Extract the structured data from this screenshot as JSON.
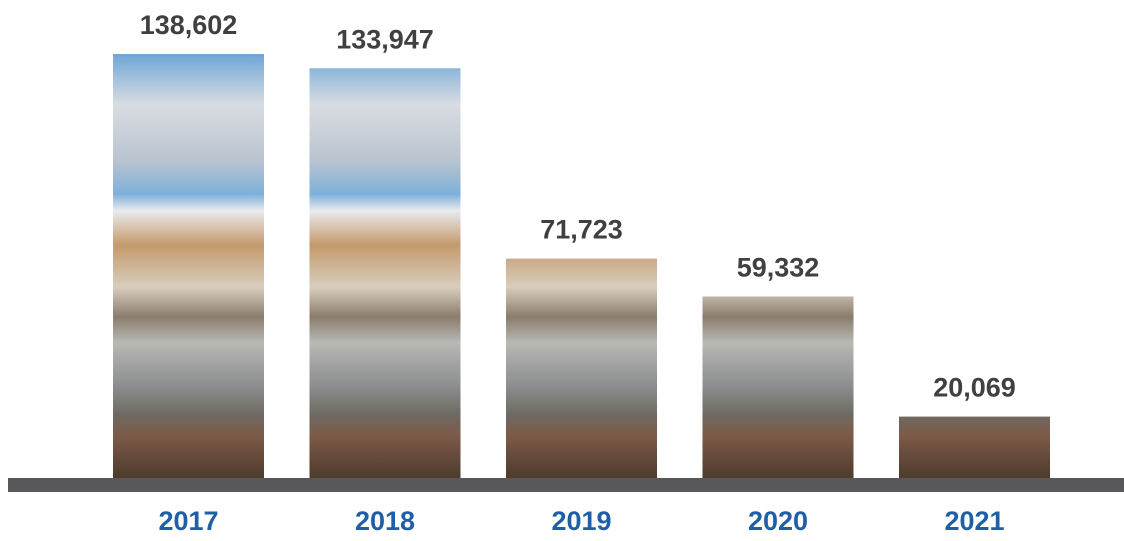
{
  "chart_data": {
    "type": "bar",
    "categories": [
      "2017",
      "2018",
      "2019",
      "2020",
      "2021"
    ],
    "values": [
      138602,
      133947,
      71723,
      59332,
      20069
    ],
    "value_labels": [
      "138,602",
      "133,947",
      "71,723",
      "59,332",
      "20,069"
    ],
    "ylim": [
      0,
      140000
    ]
  }
}
